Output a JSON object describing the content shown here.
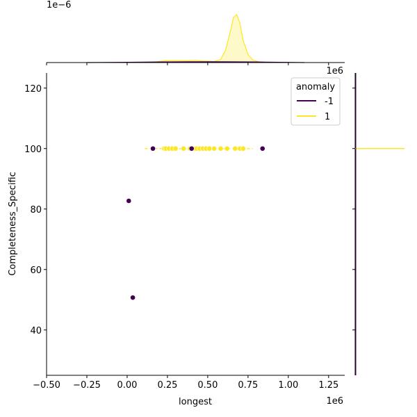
{
  "chart_data": {
    "type": "scatter",
    "title": "",
    "xlabel": "longest",
    "ylabel": "Completeness_Specific",
    "x_offset_label": "1e6",
    "top_marginal_offset_label": "1e−6",
    "right_marginal_offset_label": "1e6",
    "xlim": [
      -0.5,
      1.35
    ],
    "ylim": [
      25,
      125
    ],
    "x_unit_factor": 1000000,
    "xticks": [
      -0.5,
      -0.25,
      0.0,
      0.25,
      0.5,
      0.75,
      1.0,
      1.25
    ],
    "xtick_labels": [
      "−0.50",
      "−0.25",
      "0.00",
      "0.25",
      "0.50",
      "0.75",
      "1.00",
      "1.25"
    ],
    "yticks": [
      40,
      60,
      80,
      100,
      120
    ],
    "ytick_labels": [
      "40",
      "60",
      "80",
      "100",
      "120"
    ],
    "grid": false,
    "legend": {
      "title": "anomaly",
      "placement": "top-right",
      "entries": [
        {
          "label": "-1",
          "color": "#440154"
        },
        {
          "label": "1",
          "color": "#fde725"
        }
      ]
    },
    "series": [
      {
        "name": "-1",
        "color": "#440154",
        "points": [
          [
            160000,
            100
          ],
          [
            400000,
            100
          ],
          [
            840000,
            100
          ],
          [
            10000,
            82.7
          ],
          [
            35000,
            50.7
          ]
        ]
      },
      {
        "name": "1",
        "color": "#fde725",
        "points": [
          [
            230000,
            100
          ],
          [
            240000,
            100
          ],
          [
            260000,
            100
          ],
          [
            280000,
            100
          ],
          [
            300000,
            100
          ],
          [
            350000,
            100
          ],
          [
            390000,
            100
          ],
          [
            420000,
            100
          ],
          [
            430000,
            100
          ],
          [
            450000,
            100
          ],
          [
            470000,
            100
          ],
          [
            490000,
            100
          ],
          [
            510000,
            100
          ],
          [
            540000,
            100
          ],
          [
            580000,
            100
          ],
          [
            620000,
            100
          ],
          [
            670000,
            100
          ],
          [
            700000,
            100
          ],
          [
            720000,
            100
          ]
        ]
      }
    ],
    "marginal_top_kde": [
      {
        "name": "1",
        "color": "#fde725",
        "density_x": [
          0.12,
          0.18,
          0.24,
          0.3,
          0.36,
          0.42,
          0.48,
          0.54,
          0.58,
          0.61,
          0.64,
          0.66,
          0.68,
          0.7,
          0.72,
          0.75,
          0.78,
          0.82,
          0.88
        ],
        "density_y": [
          0.0,
          0.06,
          0.18,
          0.2,
          0.18,
          0.22,
          0.16,
          0.1,
          0.3,
          1.2,
          3.1,
          4.5,
          4.8,
          3.9,
          2.2,
          0.8,
          0.25,
          0.06,
          0.0
        ]
      },
      {
        "name": "-1",
        "color": "#440154",
        "density_x": [
          -0.25,
          0.0,
          0.2,
          0.4,
          0.6,
          0.8,
          0.95,
          1.1
        ],
        "density_y": [
          0.0,
          0.03,
          0.06,
          0.08,
          0.08,
          0.06,
          0.03,
          0.0
        ]
      }
    ],
    "marginal_right_kde": [
      {
        "name": "1",
        "color": "#fde725",
        "y": 100
      }
    ]
  }
}
